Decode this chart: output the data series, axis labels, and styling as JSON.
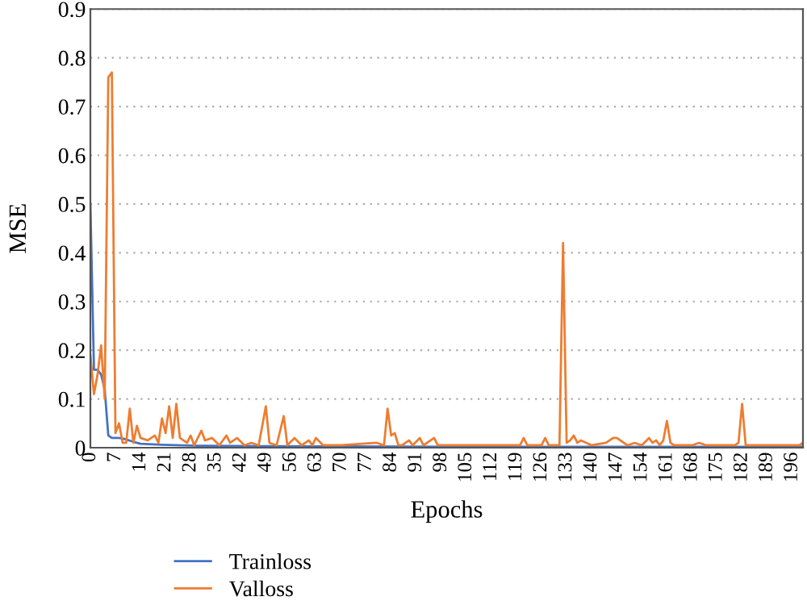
{
  "chart_data": {
    "type": "line",
    "xlabel": "Epochs",
    "ylabel": "MSE",
    "xlim": [
      0,
      199
    ],
    "xticks": [
      0,
      7,
      14,
      21,
      28,
      35,
      42,
      49,
      56,
      63,
      70,
      77,
      84,
      91,
      98,
      105,
      112,
      119,
      126,
      133,
      140,
      147,
      154,
      161,
      168,
      175,
      182,
      189,
      196
    ],
    "ylim": [
      0,
      0.9
    ],
    "yticks": [
      0,
      0.1,
      0.2,
      0.3,
      0.4,
      0.5,
      0.6,
      0.7,
      0.8,
      0.9
    ],
    "grid": "y",
    "legend": "bottom left",
    "marker": "none",
    "line_style": "solid",
    "series": [
      {
        "name": "Trainloss",
        "color": "#4472c4",
        "x": [
          0,
          1,
          2,
          3,
          4,
          5,
          6,
          8,
          10,
          12,
          14,
          20,
          30,
          50,
          100,
          150,
          199
        ],
        "values": [
          0.5,
          0.16,
          0.16,
          0.15,
          0.12,
          0.025,
          0.02,
          0.02,
          0.017,
          0.012,
          0.008,
          0.006,
          0.004,
          0.003,
          0.002,
          0.002,
          0.002
        ]
      },
      {
        "name": "Valloss",
        "color": "#ed7d31",
        "x": [
          0,
          1,
          2,
          3,
          4,
          5,
          6,
          7,
          8,
          9,
          10,
          11,
          12,
          13,
          14,
          16,
          18,
          19,
          20,
          21,
          22,
          23,
          24,
          25,
          27,
          28,
          29,
          31,
          32,
          34,
          36,
          38,
          39,
          41,
          43,
          45,
          47,
          49,
          50,
          52,
          54,
          55,
          57,
          59,
          61,
          62,
          63,
          65,
          70,
          80,
          82,
          83,
          84,
          85,
          86,
          87,
          89,
          90,
          92,
          93,
          96,
          97,
          100,
          110,
          120,
          121,
          122,
          126,
          127,
          128,
          131,
          132,
          133,
          134,
          135,
          136,
          137,
          140,
          144,
          146,
          147,
          150,
          152,
          154,
          156,
          157,
          158,
          159,
          160,
          161,
          162,
          163,
          168,
          170,
          172,
          180,
          181,
          182,
          183,
          190,
          198,
          199
        ],
        "values": [
          0.19,
          0.11,
          0.15,
          0.21,
          0.1,
          0.76,
          0.77,
          0.03,
          0.05,
          0.01,
          0.01,
          0.08,
          0.01,
          0.045,
          0.02,
          0.015,
          0.025,
          0.01,
          0.06,
          0.03,
          0.085,
          0.02,
          0.09,
          0.02,
          0.01,
          0.025,
          0.005,
          0.035,
          0.015,
          0.02,
          0.005,
          0.025,
          0.01,
          0.02,
          0.005,
          0.01,
          0.005,
          0.085,
          0.01,
          0.005,
          0.065,
          0.005,
          0.02,
          0.005,
          0.015,
          0.005,
          0.02,
          0.005,
          0.005,
          0.01,
          0.005,
          0.08,
          0.025,
          0.03,
          0.005,
          0.005,
          0.015,
          0.005,
          0.02,
          0.005,
          0.02,
          0.005,
          0.005,
          0.005,
          0.005,
          0.02,
          0.005,
          0.005,
          0.02,
          0.005,
          0.005,
          0.42,
          0.01,
          0.015,
          0.025,
          0.01,
          0.015,
          0.005,
          0.01,
          0.02,
          0.02,
          0.005,
          0.01,
          0.005,
          0.02,
          0.01,
          0.015,
          0.005,
          0.015,
          0.055,
          0.01,
          0.005,
          0.005,
          0.01,
          0.005,
          0.005,
          0.01,
          0.09,
          0.005,
          0.005,
          0.005,
          0.01
        ]
      }
    ]
  }
}
